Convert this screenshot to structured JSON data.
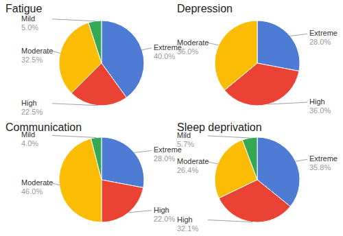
{
  "chart_data": [
    {
      "type": "pie",
      "title": "Fatigue",
      "categories": [
        "Extreme",
        "High",
        "Moderate",
        "Mild"
      ],
      "values": [
        40.0,
        22.5,
        32.5,
        5.0
      ],
      "value_labels": [
        "40.0%",
        "22.5%",
        "32.5%",
        "5.0%"
      ],
      "colors": [
        "#4e7bd3",
        "#ea4335",
        "#fbbc04",
        "#34a853"
      ],
      "data_labels": true
    },
    {
      "type": "pie",
      "title": "Depression",
      "categories": [
        "Extreme",
        "High",
        "Moderate"
      ],
      "values": [
        28.0,
        36.0,
        36.0
      ],
      "value_labels": [
        "28.0%",
        "36.0%",
        "36.0%"
      ],
      "colors": [
        "#4e7bd3",
        "#ea4335",
        "#fbbc04"
      ],
      "data_labels": true
    },
    {
      "type": "pie",
      "title": "Communication",
      "categories": [
        "Extreme",
        "High",
        "Moderate",
        "Mild"
      ],
      "values": [
        28.0,
        22.0,
        46.0,
        4.0
      ],
      "value_labels": [
        "28.0%",
        "22.0%",
        "46.0%",
        "4.0%"
      ],
      "colors": [
        "#4e7bd3",
        "#ea4335",
        "#fbbc04",
        "#34a853"
      ],
      "data_labels": true
    },
    {
      "type": "pie",
      "title": "Sleep deprivation",
      "categories": [
        "Extreme",
        "High",
        "Moderate",
        "Mild"
      ],
      "values": [
        35.8,
        32.1,
        26.4,
        5.7
      ],
      "value_labels": [
        "35.8%",
        "32.1%",
        "26.4%",
        "5.7%"
      ],
      "colors": [
        "#4e7bd3",
        "#ea4335",
        "#fbbc04",
        "#34a853"
      ],
      "data_labels": true
    }
  ]
}
